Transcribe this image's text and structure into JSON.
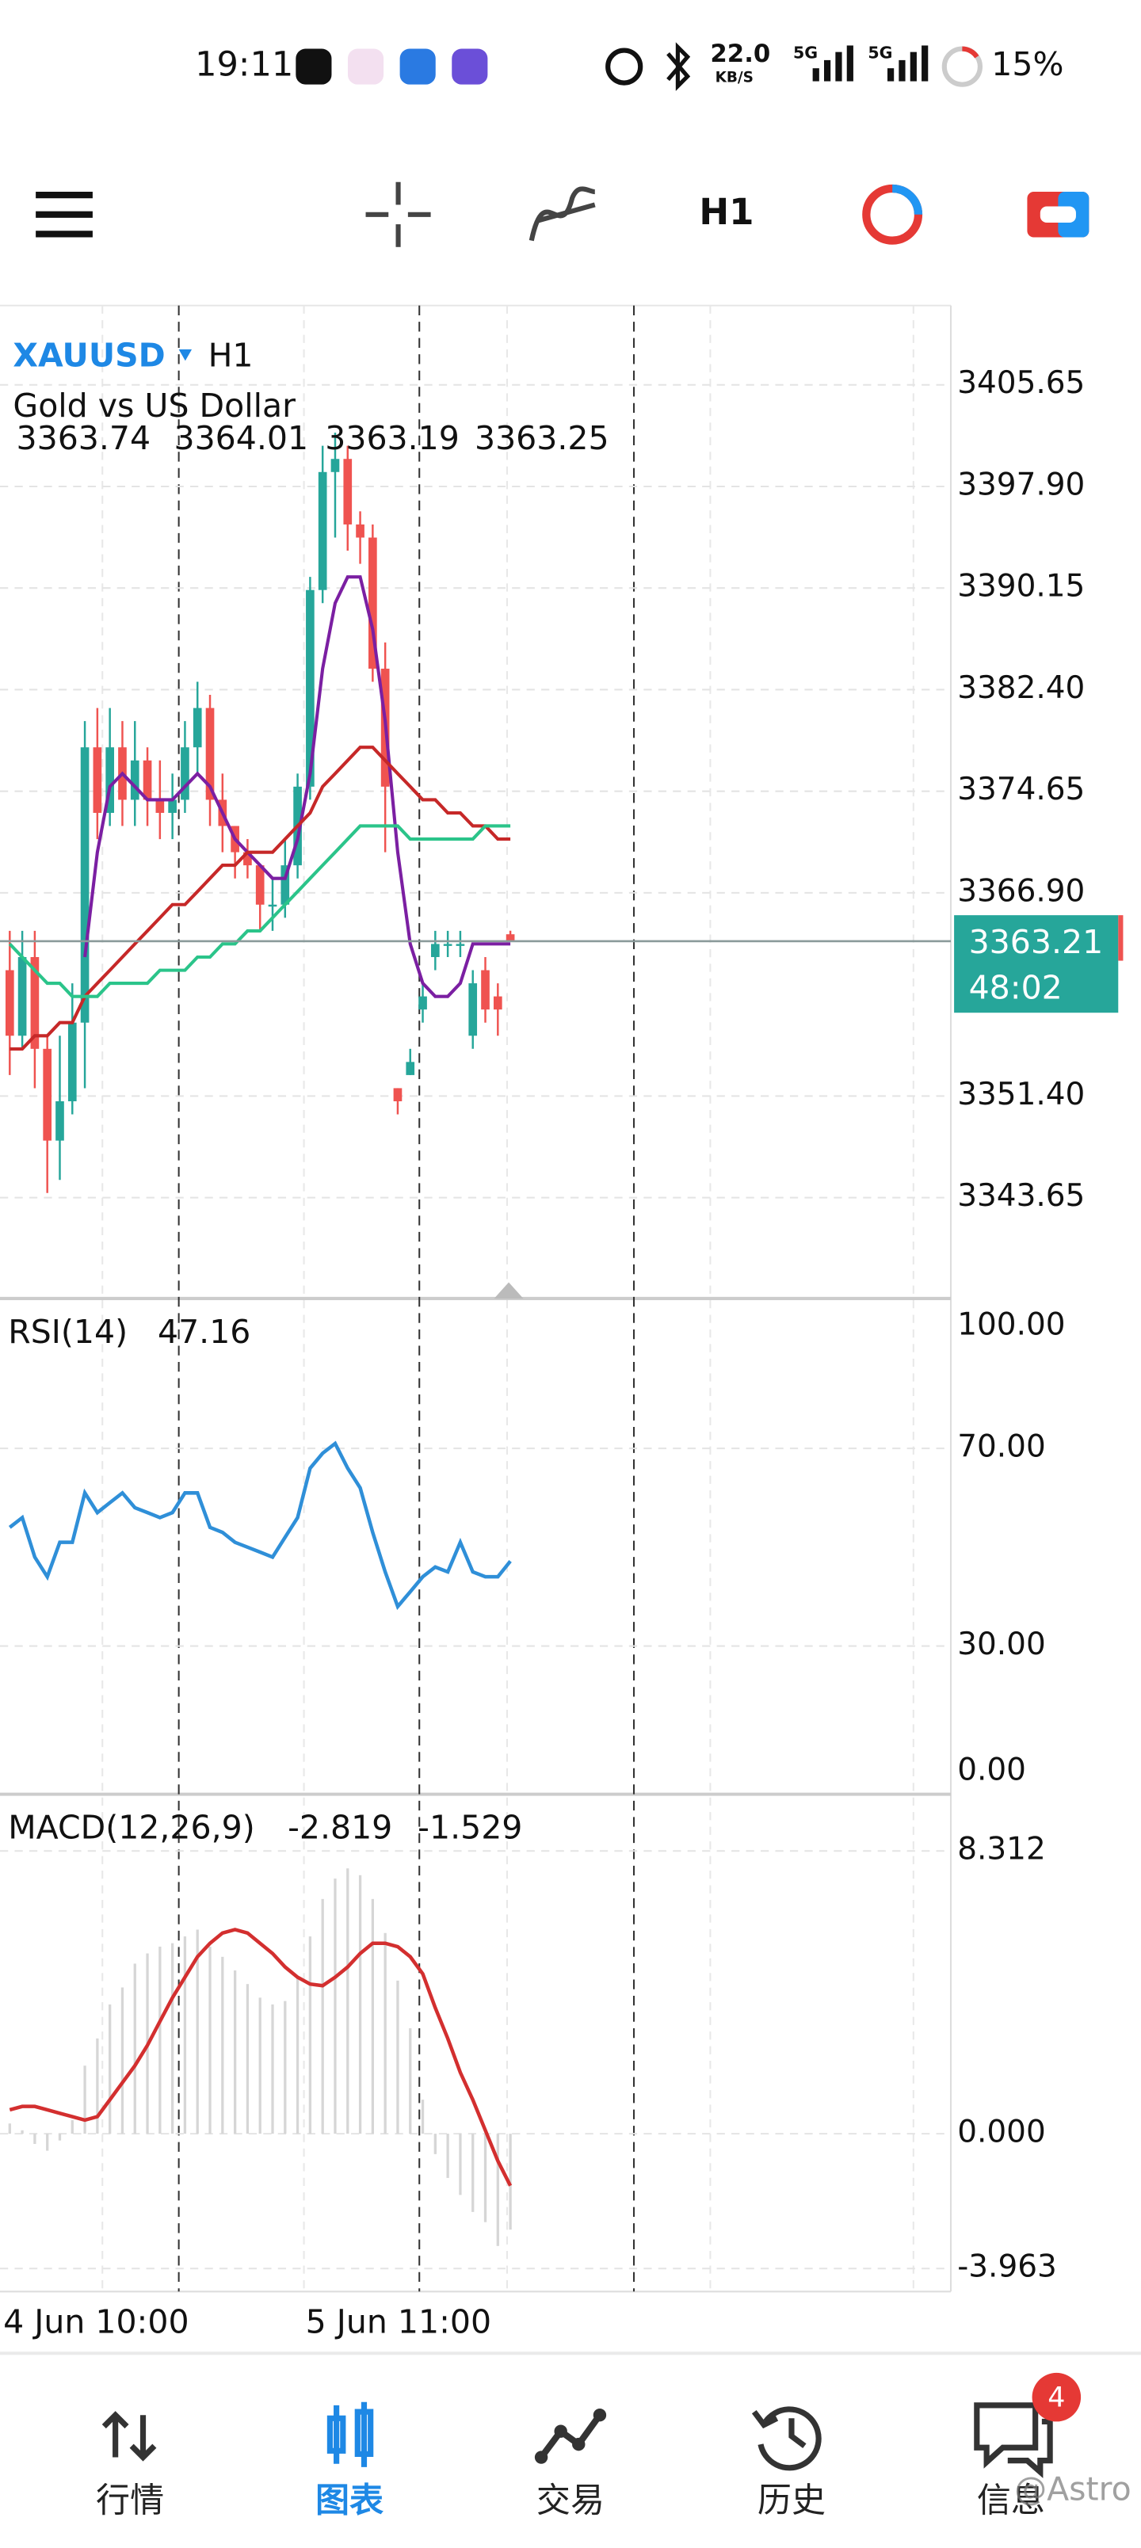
{
  "status_bar": {
    "time": "19:11",
    "net_speed": "22.0",
    "net_unit": "KB/S",
    "signal_1": "5G",
    "signal_2": "5G",
    "battery": "15%"
  },
  "toolbar": {
    "timeframe": "H1"
  },
  "chart": {
    "symbol": "XAUUSD",
    "timeframe": "H1",
    "description": "Gold vs US Dollar",
    "candles": {
      "open": [
        3361,
        3356,
        3362,
        3355,
        3348,
        3351,
        3357,
        3378,
        3373,
        3378,
        3374,
        3377,
        3374,
        3373,
        3374,
        3378,
        3381,
        3374,
        3372,
        3370,
        3369,
        3366,
        3366,
        3369,
        3375,
        3390,
        3399,
        3400,
        3395,
        3394,
        3384,
        3352,
        3353,
        3358,
        3362,
        3363,
        3363,
        3356,
        3361,
        3359,
        3363.74
      ],
      "high": [
        3364,
        3364,
        3364,
        3356,
        3356,
        3360,
        3380,
        3381,
        3381,
        3380,
        3380,
        3378,
        3377,
        3376,
        3380,
        3383,
        3382,
        3376,
        3372,
        3371,
        3369,
        3368,
        3371,
        3376,
        3391,
        3401,
        3402,
        3401,
        3396,
        3395,
        3386,
        3352,
        3355,
        3360,
        3364,
        3364,
        3364,
        3361,
        3362,
        3360,
        3364.01
      ],
      "low": [
        3353,
        3355,
        3352,
        3344,
        3345,
        3350,
        3352,
        3371,
        3372,
        3372,
        3372,
        3372,
        3371,
        3371,
        3373,
        3376,
        3372,
        3370,
        3368,
        3368,
        3364,
        3364,
        3365,
        3368,
        3374,
        3389,
        3394,
        3393,
        3392,
        3383,
        3370,
        3350,
        3353,
        3357,
        3361,
        3362,
        3362,
        3355,
        3357,
        3356,
        3363.19
      ],
      "close": [
        3356,
        3362,
        3355,
        3348,
        3351,
        3357,
        3378,
        3373,
        3378,
        3374,
        3377,
        3374,
        3373,
        3374,
        3378,
        3381,
        3374,
        3372,
        3370,
        3369,
        3366,
        3366,
        3369,
        3375,
        3390,
        3399,
        3400,
        3395,
        3394,
        3384,
        3375,
        3351,
        3354,
        3359,
        3363,
        3363,
        3363,
        3360,
        3358,
        3358,
        3363.25
      ]
    },
    "up_color": "#26a69a",
    "down_color": "#ef5350",
    "ma": [
      {
        "color": "#7b1fa2",
        "values": [
          null,
          null,
          null,
          null,
          null,
          null,
          3362,
          3370,
          3375,
          3376,
          3375,
          3374,
          3374,
          3374,
          3375,
          3376,
          3375,
          3373,
          3371,
          3370,
          3369,
          3368,
          3368,
          3371,
          3376,
          3384,
          3389,
          3391,
          3391,
          3387,
          3380,
          3370,
          3363,
          3360,
          3359,
          3359,
          3360,
          3363,
          3363,
          3363,
          3363
        ]
      },
      {
        "color": "#c62828",
        "values": [
          3355,
          3355,
          3356,
          3356,
          3357,
          3357,
          3359,
          3360,
          3361,
          3362,
          3363,
          3364,
          3365,
          3366,
          3366,
          3367,
          3368,
          3369,
          3369,
          3370,
          3370,
          3370,
          3371,
          3372,
          3373,
          3375,
          3376,
          3377,
          3378,
          3378,
          3377,
          3376,
          3375,
          3374,
          3374,
          3373,
          3373,
          3372,
          3372,
          3371,
          3371
        ]
      },
      {
        "color": "#2bc48a",
        "values": [
          3363,
          3362,
          3361,
          3360,
          3360,
          3359,
          3359,
          3359,
          3360,
          3360,
          3360,
          3360,
          3361,
          3361,
          3361,
          3362,
          3362,
          3363,
          3363,
          3364,
          3364,
          3365,
          3366,
          3367,
          3368,
          3369,
          3370,
          3371,
          3372,
          3372,
          3372,
          3372,
          3371,
          3371,
          3371,
          3371,
          3371,
          3371,
          3372,
          3372,
          3372
        ]
      }
    ],
    "ylim": [
      3336.2,
      3411.7
    ],
    "yticks": [
      3405.65,
      {
        "value": 3397.9,
        "label": "3397.90"
      },
      3390.15,
      {
        "value": 3382.4,
        "label": "3382.40"
      },
      3374.65,
      {
        "value": 3366.9,
        "label": "3366.90"
      },
      {
        "value": 3351.4,
        "label": "3351.40"
      },
      3343.65
    ],
    "current_price": 3363.21,
    "countdown": "48:02",
    "time_labels": [
      "4 Jun 10:00",
      "5 Jun 11:00"
    ]
  },
  "rsi": {
    "name": "RSI(14)",
    "color": "#2f8fd8",
    "values": [
      54,
      56,
      48,
      44,
      51,
      51,
      61,
      57,
      59,
      61,
      58,
      57,
      56,
      57,
      61,
      61,
      54,
      53,
      51,
      50,
      49,
      48,
      52,
      56,
      66,
      69,
      71,
      66,
      62,
      53,
      45,
      38,
      41,
      44,
      46,
      45,
      51,
      45,
      44,
      44,
      47.16
    ],
    "ylim": [
      0,
      100
    ],
    "yticks": [
      {
        "value": 100,
        "label": "100.00"
      },
      {
        "value": 70,
        "label": "70.00"
      },
      {
        "value": 30,
        "label": "30.00"
      },
      {
        "value": 0,
        "label": "0.00"
      }
    ]
  },
  "macd": {
    "name": "MACD(12,26,9)",
    "signal_color": "#d32f2f",
    "hist_color": "#d6d6d6",
    "macd": [
      0.3,
      0.1,
      -0.3,
      -0.5,
      -0.2,
      0.4,
      2.0,
      2.8,
      3.8,
      4.3,
      5.0,
      5.3,
      5.5,
      5.6,
      5.8,
      6.0,
      5.5,
      5.2,
      4.8,
      4.4,
      4.0,
      3.8,
      3.9,
      4.6,
      5.8,
      6.9,
      7.5,
      7.8,
      7.6,
      6.9,
      5.9,
      4.5,
      3.1,
      1.0,
      -0.6,
      -1.3,
      -1.8,
      -2.3,
      -2.6,
      -3.3,
      -2.819
    ],
    "signal": [
      0.7,
      0.8,
      0.8,
      0.7,
      0.6,
      0.5,
      0.4,
      0.5,
      1.0,
      1.5,
      2.0,
      2.6,
      3.3,
      4.0,
      4.6,
      5.2,
      5.6,
      5.9,
      6.0,
      5.9,
      5.6,
      5.3,
      4.9,
      4.6,
      4.4,
      4.35,
      4.6,
      4.9,
      5.3,
      5.6,
      5.6,
      5.5,
      5.2,
      4.7,
      3.7,
      2.8,
      1.8,
      1.0,
      0.1,
      -0.8,
      -1.529
    ],
    "ylim": [
      -4.64,
      9.98
    ],
    "yticks": [
      8.312,
      {
        "value": 0,
        "label": "0.000"
      },
      -3.963
    ]
  },
  "nav": {
    "items": [
      "行情",
      "图表",
      "交易",
      "历史",
      "信息"
    ],
    "active": 1,
    "badge": "4"
  },
  "watermark": "@Astro"
}
